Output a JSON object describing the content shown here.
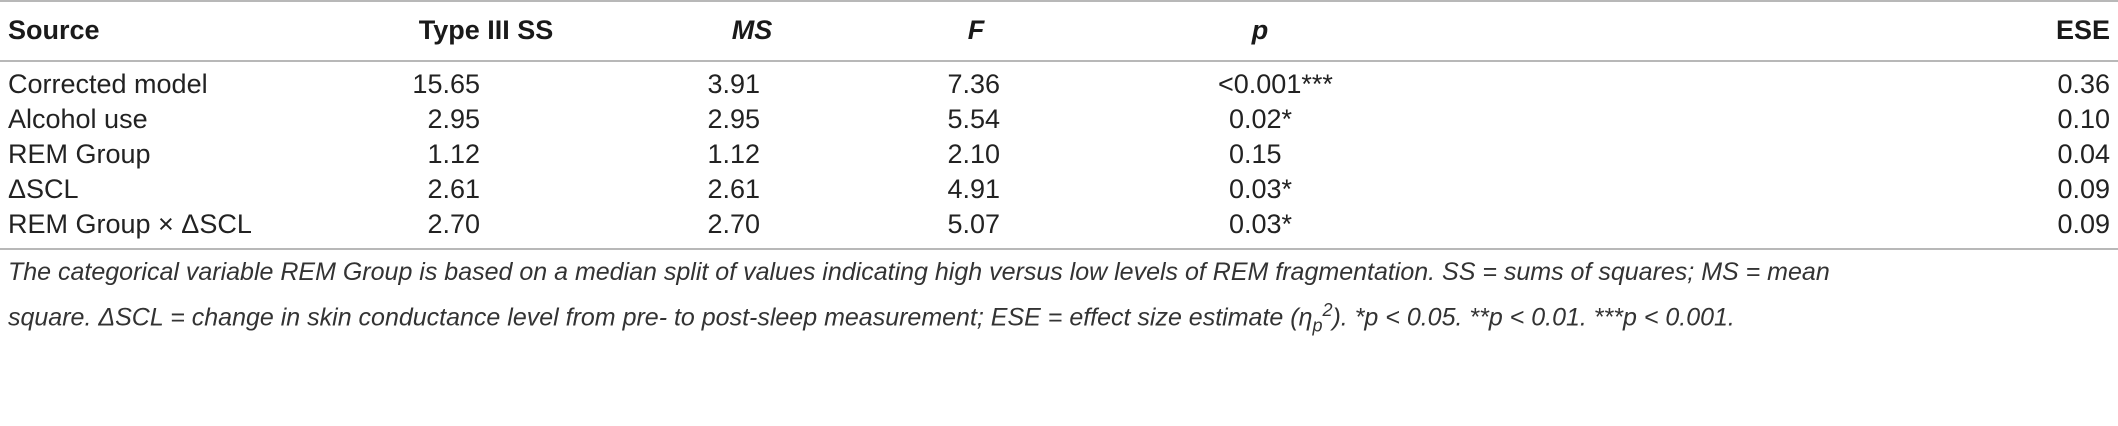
{
  "columns": [
    "Source",
    "Type III SS",
    "MS",
    "F",
    "p",
    "ESE"
  ],
  "rows": [
    {
      "source": "Corrected model",
      "ss": "15.65",
      "ms": "3.91",
      "f": "7.36",
      "p": "<0.001***",
      "ese": "0.36"
    },
    {
      "source": "Alcohol use",
      "ss": "2.95",
      "ms": "2.95",
      "f": "5.54",
      "p": "0.02*",
      "ese": "0.10"
    },
    {
      "source": "REM Group",
      "ss": "1.12",
      "ms": "1.12",
      "f": "2.10",
      "p": "0.15",
      "ese": "0.04"
    },
    {
      "source": "ΔSCL",
      "ss": "2.61",
      "ms": "2.61",
      "f": "4.91",
      "p": "0.03*",
      "ese": "0.09"
    },
    {
      "source": "REM Group × ΔSCL",
      "ss": "2.70",
      "ms": "2.70",
      "f": "5.07",
      "p": "0.03*",
      "ese": "0.09"
    }
  ],
  "footnote": {
    "line1": "The categorical variable REM Group is based on a median split of values indicating high versus low levels of REM fragmentation. SS = sums of squares; MS = mean",
    "line2_a": "square. ΔSCL = change in skin conductance level from pre- to post-sleep measurement; ESE = effect size estimate (η",
    "line2_sub": "p",
    "line2_sup": "2",
    "line2_b": "). *p < 0.05. **p < 0.01. ***p < 0.001."
  }
}
